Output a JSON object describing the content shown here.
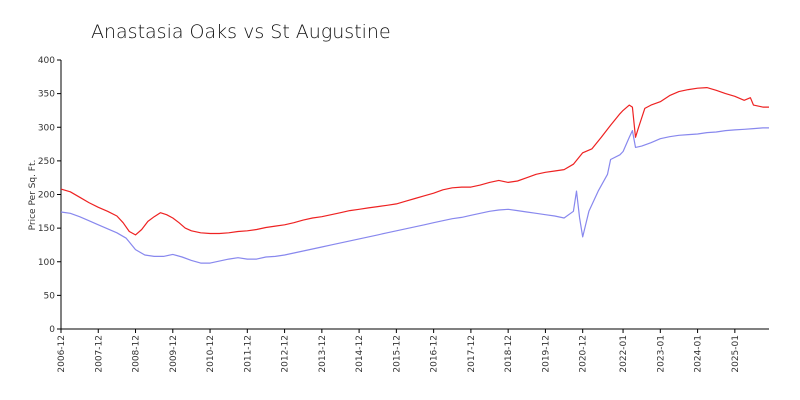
{
  "chart_data": {
    "type": "line",
    "title": "Anastasia Oaks vs St Augustine",
    "xlabel": "",
    "ylabel": "Price Per Sq. Ft.",
    "ylim": [
      0,
      400
    ],
    "yticks": [
      0,
      50,
      100,
      150,
      200,
      250,
      300,
      350,
      400
    ],
    "xtick_labels": [
      "2006-12",
      "2007-12",
      "2008-12",
      "2009-12",
      "2010-12",
      "2011-12",
      "2012-12",
      "2013-12",
      "2014-12",
      "2015-12",
      "2016-12",
      "2017-12",
      "2018-12",
      "2019-12",
      "2020-12",
      "2022-01",
      "2023-01",
      "2024-01",
      "2025-01"
    ],
    "xtick_dates": [
      "2006-12",
      "2007-12",
      "2008-12",
      "2009-12",
      "2010-12",
      "2011-12",
      "2012-12",
      "2013-12",
      "2014-12",
      "2015-12",
      "2016-12",
      "2017-12",
      "2018-12",
      "2019-12",
      "2020-12",
      "2022-01",
      "2023-01",
      "2024-01",
      "2025-01"
    ],
    "x_range": [
      "2006-12",
      "2025-12"
    ],
    "grid": false,
    "legend": "none",
    "series": [
      {
        "color": "#ee2222",
        "points": [
          [
            "2006-12",
            208
          ],
          [
            "2007-03",
            204
          ],
          [
            "2007-06",
            196
          ],
          [
            "2007-09",
            188
          ],
          [
            "2007-12",
            181
          ],
          [
            "2008-03",
            175
          ],
          [
            "2008-06",
            168
          ],
          [
            "2008-08",
            158
          ],
          [
            "2008-10",
            145
          ],
          [
            "2008-12",
            140
          ],
          [
            "2009-02",
            148
          ],
          [
            "2009-04",
            160
          ],
          [
            "2009-06",
            167
          ],
          [
            "2009-08",
            173
          ],
          [
            "2009-10",
            170
          ],
          [
            "2009-12",
            165
          ],
          [
            "2010-02",
            158
          ],
          [
            "2010-04",
            150
          ],
          [
            "2010-06",
            146
          ],
          [
            "2010-09",
            143
          ],
          [
            "2010-12",
            142
          ],
          [
            "2011-03",
            142
          ],
          [
            "2011-06",
            143
          ],
          [
            "2011-09",
            145
          ],
          [
            "2011-12",
            146
          ],
          [
            "2012-03",
            148
          ],
          [
            "2012-06",
            151
          ],
          [
            "2012-09",
            153
          ],
          [
            "2012-12",
            155
          ],
          [
            "2013-03",
            158
          ],
          [
            "2013-06",
            162
          ],
          [
            "2013-09",
            165
          ],
          [
            "2013-12",
            167
          ],
          [
            "2014-03",
            170
          ],
          [
            "2014-06",
            173
          ],
          [
            "2014-09",
            176
          ],
          [
            "2014-12",
            178
          ],
          [
            "2015-03",
            180
          ],
          [
            "2015-06",
            182
          ],
          [
            "2015-09",
            184
          ],
          [
            "2015-12",
            186
          ],
          [
            "2016-03",
            190
          ],
          [
            "2016-06",
            194
          ],
          [
            "2016-09",
            198
          ],
          [
            "2016-12",
            202
          ],
          [
            "2017-03",
            207
          ],
          [
            "2017-06",
            210
          ],
          [
            "2017-09",
            211
          ],
          [
            "2017-12",
            211
          ],
          [
            "2018-03",
            214
          ],
          [
            "2018-06",
            218
          ],
          [
            "2018-09",
            221
          ],
          [
            "2018-12",
            218
          ],
          [
            "2019-03",
            220
          ],
          [
            "2019-06",
            225
          ],
          [
            "2019-09",
            230
          ],
          [
            "2019-12",
            233
          ],
          [
            "2020-03",
            235
          ],
          [
            "2020-06",
            237
          ],
          [
            "2020-09",
            245
          ],
          [
            "2020-12",
            262
          ],
          [
            "2021-03",
            268
          ],
          [
            "2021-06",
            285
          ],
          [
            "2021-09",
            303
          ],
          [
            "2021-12",
            320
          ],
          [
            "2022-01",
            325
          ],
          [
            "2022-03",
            333
          ],
          [
            "2022-04",
            330
          ],
          [
            "2022-05",
            285
          ],
          [
            "2022-06",
            300
          ],
          [
            "2022-08",
            328
          ],
          [
            "2022-10",
            333
          ],
          [
            "2023-01",
            338
          ],
          [
            "2023-04",
            347
          ],
          [
            "2023-07",
            353
          ],
          [
            "2023-10",
            356
          ],
          [
            "2024-01",
            358
          ],
          [
            "2024-04",
            359
          ],
          [
            "2024-07",
            355
          ],
          [
            "2024-10",
            350
          ],
          [
            "2025-01",
            346
          ],
          [
            "2025-04",
            340
          ],
          [
            "2025-06",
            344
          ],
          [
            "2025-07",
            333
          ],
          [
            "2025-10",
            330
          ],
          [
            "2025-12",
            330
          ]
        ]
      },
      {
        "color": "#8888ee",
        "points": [
          [
            "2006-12",
            174
          ],
          [
            "2007-03",
            172
          ],
          [
            "2007-06",
            167
          ],
          [
            "2007-09",
            161
          ],
          [
            "2007-12",
            155
          ],
          [
            "2008-03",
            149
          ],
          [
            "2008-06",
            143
          ],
          [
            "2008-09",
            135
          ],
          [
            "2008-12",
            118
          ],
          [
            "2009-03",
            110
          ],
          [
            "2009-06",
            108
          ],
          [
            "2009-09",
            108
          ],
          [
            "2009-12",
            111
          ],
          [
            "2010-03",
            107
          ],
          [
            "2010-06",
            102
          ],
          [
            "2010-09",
            98
          ],
          [
            "2010-12",
            98
          ],
          [
            "2011-03",
            101
          ],
          [
            "2011-06",
            104
          ],
          [
            "2011-09",
            106
          ],
          [
            "2011-12",
            104
          ],
          [
            "2012-03",
            104
          ],
          [
            "2012-06",
            107
          ],
          [
            "2012-09",
            108
          ],
          [
            "2012-12",
            110
          ],
          [
            "2013-03",
            113
          ],
          [
            "2013-06",
            116
          ],
          [
            "2013-09",
            119
          ],
          [
            "2013-12",
            122
          ],
          [
            "2014-03",
            125
          ],
          [
            "2014-06",
            128
          ],
          [
            "2014-09",
            131
          ],
          [
            "2014-12",
            134
          ],
          [
            "2015-03",
            137
          ],
          [
            "2015-06",
            140
          ],
          [
            "2015-09",
            143
          ],
          [
            "2015-12",
            146
          ],
          [
            "2016-03",
            149
          ],
          [
            "2016-06",
            152
          ],
          [
            "2016-09",
            155
          ],
          [
            "2016-12",
            158
          ],
          [
            "2017-03",
            161
          ],
          [
            "2017-06",
            164
          ],
          [
            "2017-09",
            166
          ],
          [
            "2017-12",
            169
          ],
          [
            "2018-03",
            172
          ],
          [
            "2018-06",
            175
          ],
          [
            "2018-09",
            177
          ],
          [
            "2018-12",
            178
          ],
          [
            "2019-03",
            176
          ],
          [
            "2019-06",
            174
          ],
          [
            "2019-09",
            172
          ],
          [
            "2019-12",
            170
          ],
          [
            "2020-03",
            168
          ],
          [
            "2020-06",
            165
          ],
          [
            "2020-09",
            175
          ],
          [
            "2020-10",
            205
          ],
          [
            "2020-11",
            165
          ],
          [
            "2020-12",
            137
          ],
          [
            "2021-02",
            175
          ],
          [
            "2021-05",
            205
          ],
          [
            "2021-08",
            230
          ],
          [
            "2021-09",
            252
          ],
          [
            "2021-12",
            259
          ],
          [
            "2022-01",
            264
          ],
          [
            "2022-03",
            285
          ],
          [
            "2022-04",
            295
          ],
          [
            "2022-05",
            270
          ],
          [
            "2022-07",
            272
          ],
          [
            "2022-10",
            277
          ],
          [
            "2023-01",
            283
          ],
          [
            "2023-04",
            286
          ],
          [
            "2023-07",
            288
          ],
          [
            "2023-10",
            289
          ],
          [
            "2024-01",
            290
          ],
          [
            "2024-04",
            292
          ],
          [
            "2024-07",
            293
          ],
          [
            "2024-10",
            295
          ],
          [
            "2025-01",
            296
          ],
          [
            "2025-04",
            297
          ],
          [
            "2025-07",
            298
          ],
          [
            "2025-10",
            299
          ],
          [
            "2025-12",
            299
          ]
        ]
      }
    ]
  }
}
